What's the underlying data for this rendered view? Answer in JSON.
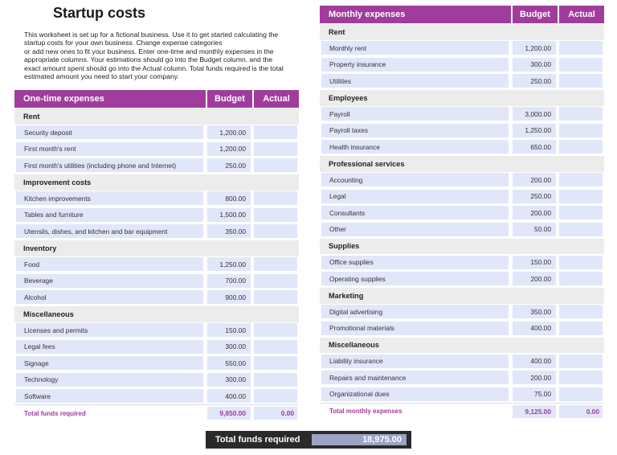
{
  "title": "Startup costs",
  "intro_lines": [
    "This worksheet is set up for a fictional business. Use it to get started calculating the",
    "startup costs for your own business. Change expense categories",
    "or add new ones to fit your business. Enter one-time and monthly expenses in the",
    "appropriate columns. Your estimations should go into the Budget column, and the",
    "exact amount spent should go into the Actual column. Total funds required is the total",
    "estimated amount you need to start your company."
  ],
  "accent_color": "#a03c9c",
  "one_time": {
    "header": "One-time expenses",
    "budget_label": "Budget",
    "actual_label": "Actual",
    "sections": [
      {
        "name": "Rent",
        "items": [
          {
            "label": "Security deposit",
            "budget": "1,200.00",
            "actual": ""
          },
          {
            "label": "First month's rent",
            "budget": "1,200.00",
            "actual": ""
          },
          {
            "label": "First month's utilities (including phone and Internet)",
            "budget": "250.00",
            "actual": ""
          }
        ]
      },
      {
        "name": "Improvement costs",
        "items": [
          {
            "label": "Kitchen improvements",
            "budget": "800.00",
            "actual": ""
          },
          {
            "label": "Tables and furniture",
            "budget": "1,500.00",
            "actual": ""
          },
          {
            "label": "Utensils, dishes, and kitchen and bar equipment",
            "budget": "350.00",
            "actual": ""
          }
        ]
      },
      {
        "name": "Inventory",
        "items": [
          {
            "label": "Food",
            "budget": "1,250.00",
            "actual": ""
          },
          {
            "label": "Beverage",
            "budget": "700.00",
            "actual": ""
          },
          {
            "label": "Alcohol",
            "budget": "900.00",
            "actual": ""
          }
        ]
      },
      {
        "name": "Miscellaneous",
        "items": [
          {
            "label": "Licenses and permits",
            "budget": "150.00",
            "actual": ""
          },
          {
            "label": "Legal fees",
            "budget": "300.00",
            "actual": ""
          },
          {
            "label": "Signage",
            "budget": "550.00",
            "actual": ""
          },
          {
            "label": "Technology",
            "budget": "300.00",
            "actual": ""
          },
          {
            "label": "Software",
            "budget": "400.00",
            "actual": ""
          }
        ]
      }
    ],
    "total_label": "Total funds required",
    "total_budget": "9,850.00",
    "total_actual": "0.00"
  },
  "monthly": {
    "header": "Monthly expenses",
    "budget_label": "Budget",
    "actual_label": "Actual",
    "sections": [
      {
        "name": "Rent",
        "items": [
          {
            "label": "Monthly rent",
            "budget": "1,200.00",
            "actual": ""
          },
          {
            "label": "Property insurance",
            "budget": "300.00",
            "actual": ""
          },
          {
            "label": "Utilities",
            "budget": "250.00",
            "actual": ""
          }
        ]
      },
      {
        "name": "Employees",
        "items": [
          {
            "label": "Payroll",
            "budget": "3,000.00",
            "actual": ""
          },
          {
            "label": "Payroll taxes",
            "budget": "1,250.00",
            "actual": ""
          },
          {
            "label": "Health insurance",
            "budget": "650.00",
            "actual": ""
          }
        ]
      },
      {
        "name": "Professional services",
        "items": [
          {
            "label": "Accounting",
            "budget": "200.00",
            "actual": ""
          },
          {
            "label": "Legal",
            "budget": "250.00",
            "actual": ""
          },
          {
            "label": "Consultants",
            "budget": "200.00",
            "actual": ""
          },
          {
            "label": "Other",
            "budget": "50.00",
            "actual": ""
          }
        ]
      },
      {
        "name": "Supplies",
        "items": [
          {
            "label": "Office supplies",
            "budget": "150.00",
            "actual": ""
          },
          {
            "label": "Operating supplies",
            "budget": "200.00",
            "actual": ""
          }
        ]
      },
      {
        "name": "Marketing",
        "items": [
          {
            "label": "Digital advertising",
            "budget": "350.00",
            "actual": ""
          },
          {
            "label": "Promotional materials",
            "budget": "400.00",
            "actual": ""
          }
        ]
      },
      {
        "name": "Miscellaneous",
        "items": [
          {
            "label": "Liability insurance",
            "budget": "400.00",
            "actual": ""
          },
          {
            "label": "Repairs and maintenance",
            "budget": "200.00",
            "actual": ""
          },
          {
            "label": "Organizational dues",
            "budget": "75.00",
            "actual": ""
          }
        ]
      }
    ],
    "total_label": "Total monthly expenses",
    "total_budget": "9,125.00",
    "total_actual": "0.00"
  },
  "grand_total": {
    "label": "Total funds required",
    "value": "18,975.00"
  }
}
